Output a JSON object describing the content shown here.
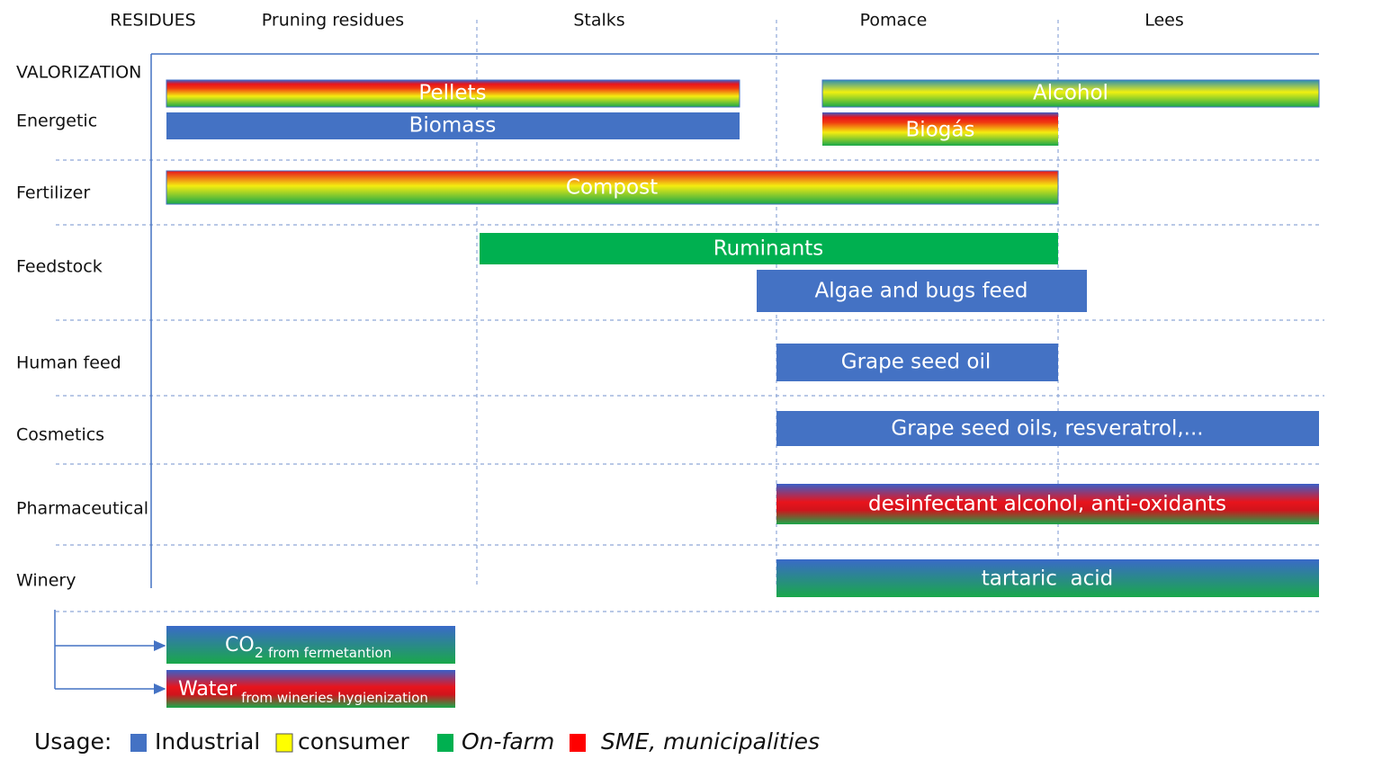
{
  "columns": {
    "header": "RESIDUES",
    "items": [
      "Pruning residues",
      "Stalks",
      "Pomace",
      "Lees"
    ]
  },
  "rows": {
    "header": "VALORIZATION",
    "items": [
      "Energetic",
      "Fertilizer",
      "Feedstock",
      "Human feed",
      "Cosmetics",
      "Pharmaceutical",
      "Winery"
    ]
  },
  "bars": [
    "Pellets",
    "Biomass",
    "Alcohol",
    "Biogás",
    "Compost",
    "Ruminants",
    "Algae and bugs feed",
    "Grape seed oil",
    "Grape seed oils, resveratrol,...",
    "desinfectant alcohol, anti-oxidants",
    "tartaric  acid"
  ],
  "byproducts": [
    {
      "main": "CO",
      "sub": "2",
      "note": "from fermetantion"
    },
    {
      "main": "Water",
      "note": "from wineries hygienization"
    }
  ],
  "legend": {
    "title": "Usage:",
    "items": [
      "Industrial",
      "consumer",
      "On-farm",
      "SME, municipalities"
    ]
  }
}
